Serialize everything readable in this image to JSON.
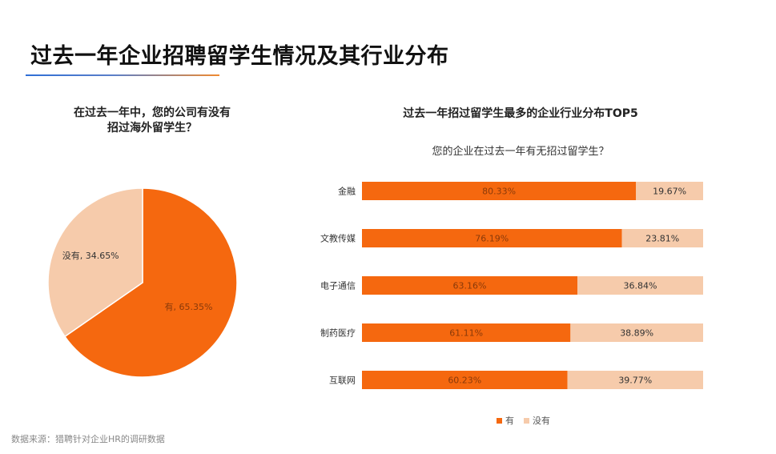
{
  "page": {
    "title": "过去一年企业招聘留学生情况及其行业分布",
    "source": "数据来源：猎聘针对企业HR的调研数据"
  },
  "pie": {
    "title_line1": "在过去一年中，您的公司有没有",
    "title_line2": "招过海外留学生？"
  },
  "bar": {
    "title": "过去一年招过留学生最多的企业行业分布TOP5",
    "subtitle": "您的企业在过去一年有无招过留学生？"
  },
  "legend": {
    "yes": "有",
    "no": "没有"
  },
  "colors": {
    "yes": "#f5680f",
    "no": "#f6cbab",
    "label_on_yes": "#8a3a0a",
    "label_on_no": "#333333"
  },
  "chart_data": [
    {
      "type": "pie",
      "title": "在过去一年中，您的公司有没有招过海外留学生？",
      "slices": [
        {
          "label": "有",
          "value": 65.35,
          "display": "有, 65.35%"
        },
        {
          "label": "没有",
          "value": 34.65,
          "display": "没有, 34.65%"
        }
      ]
    },
    {
      "type": "bar",
      "orientation": "horizontal",
      "stacked": true,
      "title": "过去一年招过留学生最多的企业行业分布TOP5",
      "subtitle": "您的企业在过去一年有无招过留学生？",
      "categories": [
        "金融",
        "文教传媒",
        "电子通信",
        "制药医疗",
        "互联网"
      ],
      "series": [
        {
          "name": "有",
          "values": [
            80.33,
            76.19,
            63.16,
            61.11,
            60.23
          ],
          "labels": [
            "80.33%",
            "76.19%",
            "63.16%",
            "61.11%",
            "60.23%"
          ]
        },
        {
          "name": "没有",
          "values": [
            19.67,
            23.81,
            36.84,
            38.89,
            39.77
          ],
          "labels": [
            "19.67%",
            "23.81%",
            "36.84%",
            "38.89%",
            "39.77%"
          ]
        }
      ],
      "xlim": [
        0,
        100
      ],
      "legend_position": "bottom"
    }
  ]
}
